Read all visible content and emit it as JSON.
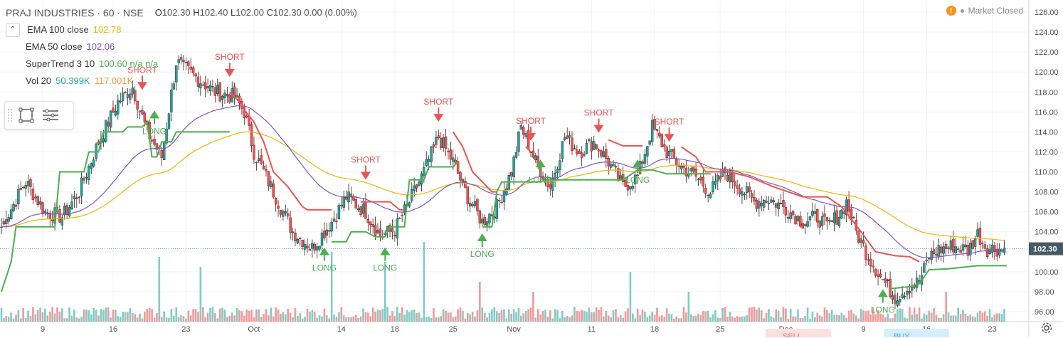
{
  "header": {
    "title": "PRAJ INDUSTRIES · 60 · NSE",
    "ohlc": {
      "o_label": "O",
      "o": "102.30",
      "h_label": "H",
      "h": "102.40",
      "l_label": "L",
      "l": "102.00",
      "c_label": "C",
      "c": "102.30",
      "chg": "0.00 (0.00%)"
    }
  },
  "indicators": [
    {
      "name": "EMA 100 close",
      "value": "102.78",
      "color": "#f4b400"
    },
    {
      "name": "EMA 50 close",
      "value": "102.06",
      "color": "#7e57c2"
    },
    {
      "name": "SuperTrend 3 10",
      "value": "100.60  n/a  n/a",
      "color": "#4caf50"
    },
    {
      "name": "Vol 20",
      "value": "50.399K",
      "value2": "117.001K",
      "color": "#26a69a",
      "color2": "#ef9a40"
    }
  ],
  "status": {
    "warn_icon": "warning-icon",
    "text": "Market Closed"
  },
  "price_tag": "102.30",
  "colors": {
    "up": "#26a69a",
    "down": "#ef5350",
    "ema100": "#f4b400",
    "ema50": "#7e57c2",
    "st_up": "#4caf50",
    "st_down": "#ef5350",
    "vol_up": "#80cbc4",
    "vol_down": "#ef9a9a",
    "grid": "#f0f3fa",
    "axis_text": "#4f4f4f"
  },
  "chart_data": {
    "type": "candlestick",
    "symbol": "PRAJ INDUSTRIES",
    "interval": "60",
    "exchange": "NSE",
    "y_ticks": [
      "126.00",
      "124.00",
      "122.00",
      "120.00",
      "118.00",
      "116.00",
      "114.00",
      "112.00",
      "110.00",
      "108.00",
      "106.00",
      "104.00",
      "102.00",
      "100.00",
      "98.00",
      "96.00"
    ],
    "ylim": [
      95.6,
      126.8
    ],
    "x_ticks": [
      "9",
      "16",
      "23",
      "Oct",
      "14",
      "18",
      "25",
      "Nov",
      "11",
      "18",
      "25",
      "Dec",
      "9",
      "16",
      "23"
    ],
    "close_keypoints": [
      [
        0,
        104.5
      ],
      [
        10,
        109
      ],
      [
        18,
        106
      ],
      [
        25,
        105.5
      ],
      [
        32,
        108
      ],
      [
        40,
        113
      ],
      [
        48,
        117
      ],
      [
        54,
        118.5
      ],
      [
        60,
        114
      ],
      [
        66,
        111.5
      ],
      [
        72,
        121
      ],
      [
        80,
        119.5
      ],
      [
        88,
        118
      ],
      [
        96,
        117.5
      ],
      [
        100,
        116
      ],
      [
        104,
        112
      ],
      [
        112,
        108
      ],
      [
        120,
        104
      ],
      [
        128,
        102.4
      ],
      [
        136,
        105
      ],
      [
        142,
        107.5
      ],
      [
        150,
        106
      ],
      [
        156,
        103.6
      ],
      [
        162,
        104.2
      ],
      [
        168,
        107
      ],
      [
        174,
        110
      ],
      [
        180,
        113.5
      ],
      [
        186,
        111
      ],
      [
        192,
        107.5
      ],
      [
        198,
        105
      ],
      [
        204,
        106.5
      ],
      [
        210,
        110
      ],
      [
        214,
        114.5
      ],
      [
        220,
        111
      ],
      [
        226,
        108.5
      ],
      [
        232,
        113.5
      ],
      [
        238,
        112
      ],
      [
        244,
        113
      ],
      [
        250,
        111
      ],
      [
        256,
        108.5
      ],
      [
        262,
        109.5
      ],
      [
        268,
        114.5
      ],
      [
        274,
        112
      ],
      [
        280,
        110.5
      ],
      [
        286,
        109.5
      ],
      [
        292,
        108
      ],
      [
        298,
        110
      ],
      [
        304,
        108.5
      ],
      [
        310,
        107
      ],
      [
        316,
        107.3
      ],
      [
        322,
        106.5
      ],
      [
        330,
        105
      ],
      [
        336,
        105.5
      ],
      [
        340,
        104.5
      ],
      [
        346,
        106
      ],
      [
        348,
        107
      ],
      [
        352,
        104
      ],
      [
        356,
        102
      ],
      [
        362,
        99.5
      ],
      [
        368,
        97.5
      ],
      [
        374,
        98.5
      ],
      [
        378,
        99
      ],
      [
        382,
        101.5
      ],
      [
        386,
        102.2
      ],
      [
        392,
        102.6
      ],
      [
        398,
        102.1
      ],
      [
        402,
        103.8
      ],
      [
        406,
        102.3
      ]
    ],
    "supertrend": {
      "period": 3,
      "multiplier": 10,
      "up_segments": [
        [
          [
            0,
            98
          ],
          [
            4,
            101
          ],
          [
            6,
            104.5
          ],
          [
            22,
            104.5
          ],
          [
            24,
            110
          ],
          [
            34,
            110
          ],
          [
            36,
            112
          ],
          [
            40,
            112
          ],
          [
            42,
            114
          ],
          [
            50,
            114
          ],
          [
            52,
            114.5
          ],
          [
            58,
            114.5
          ],
          [
            60,
            115
          ],
          [
            62,
            111.5
          ],
          [
            64,
            111.5
          ],
          [
            66,
            113
          ],
          [
            70,
            113
          ],
          [
            72,
            114
          ],
          [
            92,
            114
          ],
          [
            94,
            114
          ]
        ],
        [
          [
            136,
            103
          ],
          [
            142,
            103
          ],
          [
            144,
            104
          ],
          [
            150,
            104
          ],
          [
            154,
            103.5
          ],
          [
            158,
            103.5
          ],
          [
            160,
            104.5
          ],
          [
            166,
            104.5
          ],
          [
            168,
            109.2
          ],
          [
            174,
            109.2
          ],
          [
            176,
            110.5
          ],
          [
            186,
            110.5
          ],
          [
            188,
            111
          ]
        ],
        [
          [
            198,
            104.5
          ],
          [
            202,
            104.5
          ],
          [
            204,
            108
          ],
          [
            206,
            109
          ],
          [
            216,
            109
          ],
          [
            222,
            109
          ],
          [
            224,
            109.2
          ],
          [
            256,
            109.2
          ],
          [
            262,
            110.2
          ],
          [
            268,
            110.2
          ],
          [
            274,
            109.8
          ],
          [
            292,
            109.8
          ]
        ],
        [
          [
            366,
            98.3
          ],
          [
            374,
            98.5
          ],
          [
            378,
            98.8
          ],
          [
            382,
            100.2
          ],
          [
            390,
            100.3
          ],
          [
            402,
            100.6
          ],
          [
            414,
            100.6
          ]
        ]
      ],
      "down_segments": [
        [
          [
            94,
            118
          ],
          [
            98,
            117
          ],
          [
            100,
            116.2
          ],
          [
            104,
            115
          ],
          [
            108,
            113
          ],
          [
            112,
            110
          ],
          [
            118,
            108.5
          ],
          [
            124,
            106.5
          ],
          [
            126,
            106.2
          ],
          [
            136,
            106.2
          ]
        ],
        [
          [
            148,
            107
          ],
          [
            160,
            107
          ],
          [
            164,
            106.2
          ],
          [
            166,
            106.2
          ]
        ],
        [
          [
            186,
            114
          ],
          [
            190,
            112.5
          ],
          [
            194,
            110
          ],
          [
            198,
            109
          ],
          [
            202,
            108
          ],
          [
            204,
            108
          ]
        ],
        [
          [
            216,
            112.5
          ],
          [
            218,
            112
          ]
        ],
        [
          [
            250,
            113.2
          ],
          [
            256,
            112.6
          ],
          [
            264,
            112.6
          ]
        ],
        [
          [
            280,
            112.5
          ],
          [
            286,
            111.5
          ],
          [
            290,
            110
          ],
          [
            300,
            110
          ],
          [
            308,
            109.5
          ],
          [
            318,
            108.5
          ],
          [
            330,
            107.5
          ],
          [
            340,
            107.5
          ],
          [
            346,
            106.5
          ],
          [
            354,
            104
          ],
          [
            360,
            102
          ],
          [
            368,
            101.6
          ],
          [
            374,
            101.5
          ],
          [
            378,
            101
          ]
        ]
      ]
    },
    "signals": [
      {
        "type": "SHORT",
        "i": 58,
        "price": 118.5
      },
      {
        "type": "LONG",
        "i": 63,
        "price": 115.5
      },
      {
        "type": "SHORT",
        "i": 94,
        "price": 119.8
      },
      {
        "type": "LONG",
        "i": 133,
        "price": 101.8
      },
      {
        "type": "SHORT",
        "i": 150,
        "price": 109.5
      },
      {
        "type": "LONG",
        "i": 158,
        "price": 101.8
      },
      {
        "type": "SHORT",
        "i": 180,
        "price": 115.3
      },
      {
        "type": "LONG",
        "i": 198,
        "price": 103.2
      },
      {
        "type": "SHORT",
        "i": 218,
        "price": 113.4
      },
      {
        "type": "LONG",
        "i": 222,
        "price": 110.6
      },
      {
        "type": "SHORT",
        "i": 246,
        "price": 114.2
      },
      {
        "type": "LONG",
        "i": 262,
        "price": 110.6
      },
      {
        "type": "SHORT",
        "i": 275,
        "price": 113.3
      },
      {
        "type": "LONG",
        "i": 363,
        "price": 97.6
      }
    ],
    "volume_spikes": [
      [
        65,
        6.5
      ],
      [
        82,
        5.5
      ],
      [
        136,
        7.0
      ],
      [
        158,
        6.0
      ],
      [
        174,
        8.0
      ],
      [
        197,
        4.0
      ],
      [
        219,
        3.0
      ],
      [
        259,
        5.0
      ],
      [
        283,
        3.0
      ],
      [
        389,
        3.0
      ]
    ],
    "title": "PRAJ INDUSTRIES · 60 · NSE"
  },
  "bottom_tabs": {
    "sell": "SELL",
    "buy": "BUY"
  }
}
